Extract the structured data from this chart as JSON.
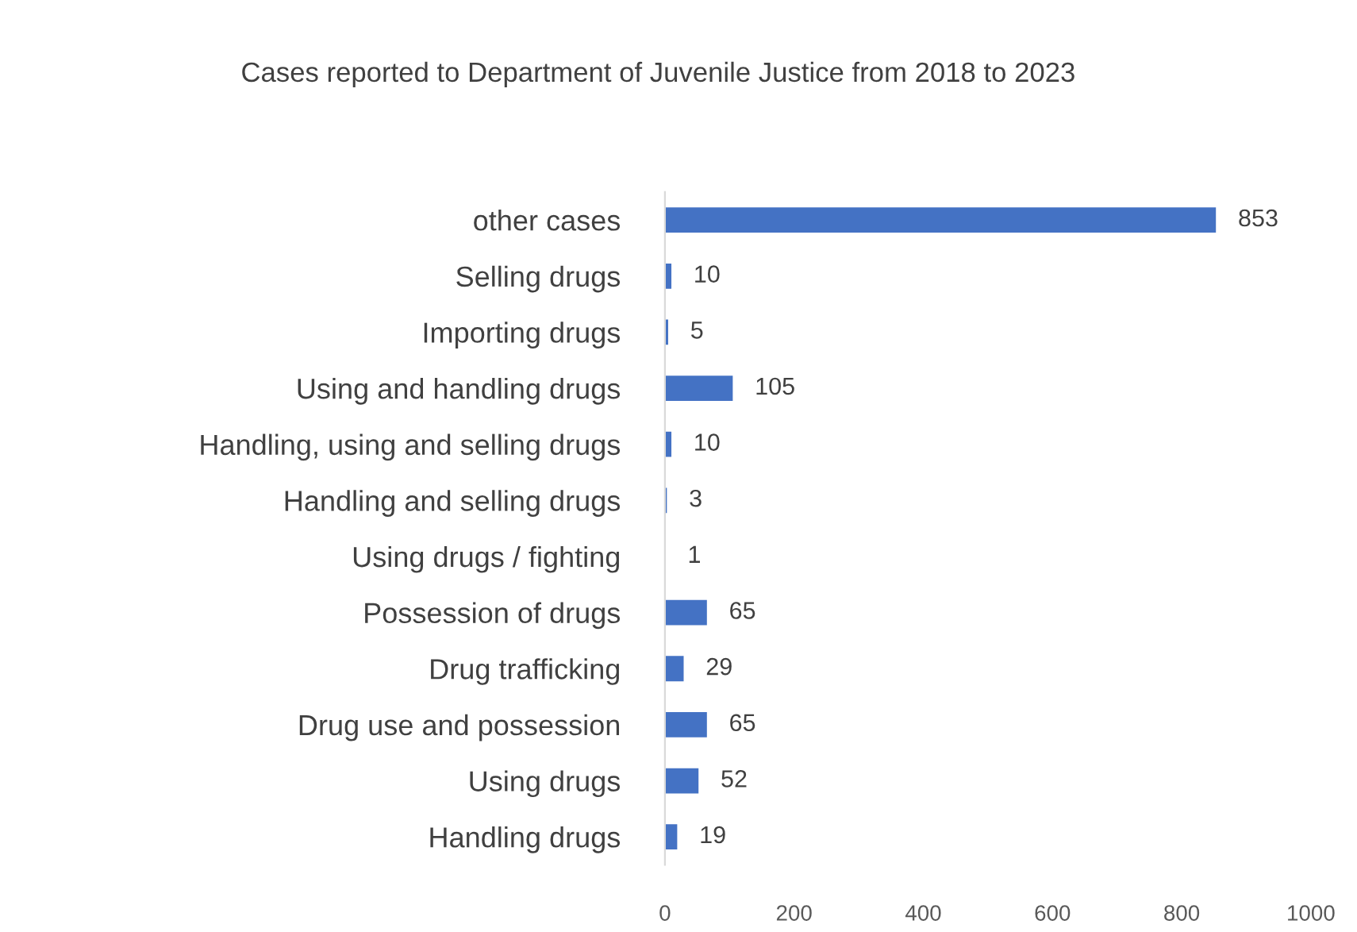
{
  "chart_data": {
    "type": "bar",
    "orientation": "horizontal",
    "title": "Cases reported to Department of Juvenile Justice from 2018 to 2023",
    "categories": [
      "other cases",
      "Selling drugs",
      "Importing drugs",
      "Using and handling drugs",
      "Handling, using and selling drugs",
      "Handling and selling drugs",
      "Using drugs / fighting",
      "Possession of drugs",
      "Drug trafficking",
      "Drug use and possession",
      "Using drugs",
      "Handling drugs"
    ],
    "values": [
      853,
      10,
      5,
      105,
      10,
      3,
      1,
      65,
      29,
      65,
      52,
      19
    ],
    "color": "#4472c4",
    "xlim": [
      0,
      1000
    ],
    "xticks": [
      0,
      200,
      400,
      600,
      800,
      1000
    ],
    "data_labels": true,
    "grid": false,
    "legend": false
  }
}
